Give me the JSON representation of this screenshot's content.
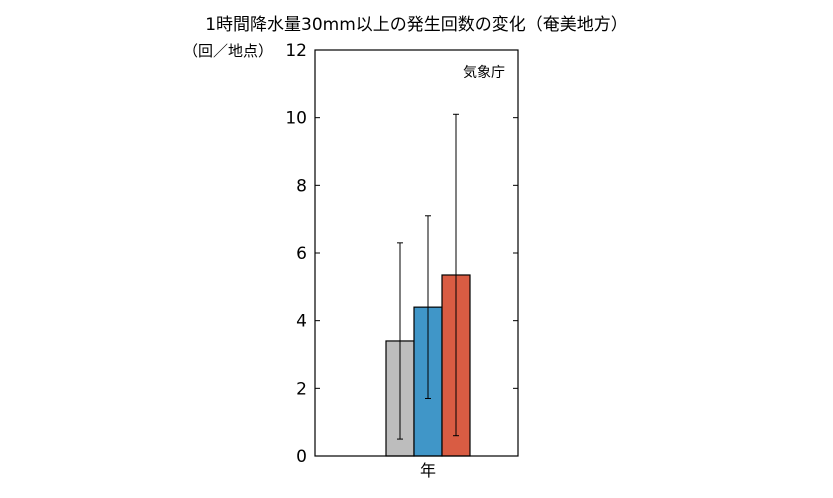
{
  "chart_data": {
    "type": "bar",
    "title": "1時間降水量30mm以上の発生回数の変化（奄美地方）",
    "ylabel": "（回／地点）",
    "xlabel": "",
    "categories": [
      "年"
    ],
    "ylim": [
      0,
      12
    ],
    "yticks": [
      0,
      2,
      4,
      6,
      8,
      10,
      12
    ],
    "grid": false,
    "legend": "none",
    "annotation": "気象庁",
    "series": [
      {
        "values": [
          3.4
        ],
        "error_low": [
          0.5
        ],
        "error_high": [
          6.3
        ],
        "color": "#bdbdbd"
      },
      {
        "values": [
          4.4
        ],
        "error_low": [
          1.7
        ],
        "error_high": [
          7.1
        ],
        "color": "#4096c8"
      },
      {
        "values": [
          5.35
        ],
        "error_low": [
          0.6
        ],
        "error_high": [
          10.1
        ],
        "color": "#d95c43"
      }
    ]
  }
}
